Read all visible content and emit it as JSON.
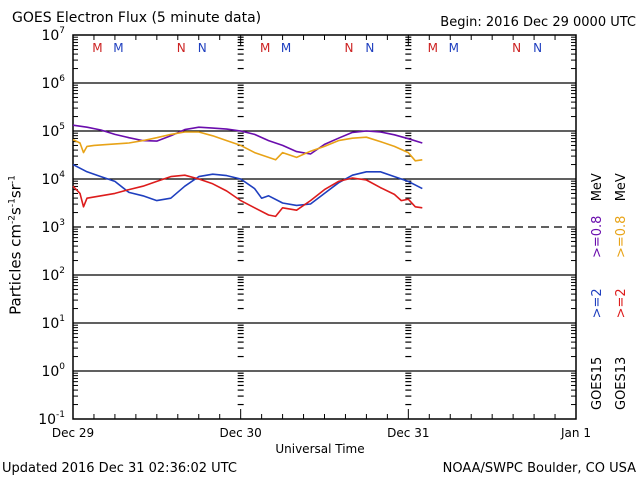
{
  "header": {
    "title": "GOES Electron Flux (5 minute data)",
    "begin": "Begin: 2016 Dec 29 0000 UTC"
  },
  "footer": {
    "updated": "Updated 2016 Dec 31 02:36:02 UTC",
    "credit": "NOAA/SWPC Boulder, CO USA"
  },
  "legend": {
    "goes15": {
      "label": "GOES15",
      "ge2": ">=2",
      "ge08": ">=0.8",
      "unit": "MeV"
    },
    "goes13": {
      "label": "GOES13",
      "ge2": ">=2",
      "ge08": ">=0.8",
      "unit": "MeV"
    }
  },
  "chart_data": {
    "type": "line",
    "title": "GOES Electron Flux (5 minute data)",
    "xlabel": "Universal Time",
    "ylabel": "Particles cm^-2 s^-1 sr^-1",
    "yscale": "log",
    "ylim_log10": [
      -1,
      7
    ],
    "xlim_hours": [
      0,
      72
    ],
    "grid": true,
    "legend_placement": "right (rotated)",
    "x_tick_labels": [
      {
        "hour": 0,
        "label": "Dec 29"
      },
      {
        "hour": 24,
        "label": "Dec 30"
      },
      {
        "hour": 48,
        "label": "Dec 31"
      },
      {
        "hour": 72,
        "label": "Jan 1"
      }
    ],
    "y_tick_labels": [
      {
        "exp": 7,
        "base": "10",
        "sup": "7"
      },
      {
        "exp": 6,
        "base": "10",
        "sup": "6"
      },
      {
        "exp": 5,
        "base": "10",
        "sup": "5"
      },
      {
        "exp": 4,
        "base": "10",
        "sup": "4"
      },
      {
        "exp": 3,
        "base": "10",
        "sup": "3"
      },
      {
        "exp": 2,
        "base": "10",
        "sup": "2"
      },
      {
        "exp": 1,
        "base": "10",
        "sup": "1"
      },
      {
        "exp": 0,
        "base": "10",
        "sup": "0"
      },
      {
        "exp": -1,
        "base": "10",
        "sup": "-1"
      }
    ],
    "dashed_threshold_log10": 3,
    "markers": [
      {
        "hour": 3.5,
        "letter": "M",
        "color": "#cc2222"
      },
      {
        "hour": 6.5,
        "letter": "M",
        "color": "#1f3fbf"
      },
      {
        "hour": 15.5,
        "letter": "N",
        "color": "#cc2222"
      },
      {
        "hour": 18.5,
        "letter": "N",
        "color": "#1f3fbf"
      },
      {
        "hour": 27.5,
        "letter": "M",
        "color": "#cc2222"
      },
      {
        "hour": 30.5,
        "letter": "M",
        "color": "#1f3fbf"
      },
      {
        "hour": 39.5,
        "letter": "N",
        "color": "#cc2222"
      },
      {
        "hour": 42.5,
        "letter": "N",
        "color": "#1f3fbf"
      },
      {
        "hour": 51.5,
        "letter": "M",
        "color": "#cc2222"
      },
      {
        "hour": 54.5,
        "letter": "M",
        "color": "#1f3fbf"
      },
      {
        "hour": 63.5,
        "letter": "N",
        "color": "#cc2222"
      },
      {
        "hour": 66.5,
        "letter": "N",
        "color": "#1f3fbf"
      }
    ],
    "series": [
      {
        "name": "GOES15 >=0.8 MeV",
        "color": "#6a0dad",
        "hours": [
          0,
          2,
          4,
          6,
          8,
          10,
          12,
          14,
          16,
          18,
          20,
          22,
          24,
          26,
          28,
          29,
          30,
          32,
          34,
          36,
          38,
          40,
          42,
          44,
          46,
          48,
          50
        ],
        "log10": [
          5.12,
          5.08,
          5.02,
          4.93,
          4.86,
          4.8,
          4.79,
          4.9,
          5.03,
          5.08,
          5.06,
          5.04,
          5.0,
          4.93,
          4.8,
          4.75,
          4.7,
          4.57,
          4.52,
          4.72,
          4.85,
          4.97,
          5.0,
          4.98,
          4.92,
          4.84,
          4.75
        ]
      },
      {
        "name": "GOES13 >=0.8 MeV",
        "color": "#e8a317",
        "hours": [
          0,
          1,
          1.5,
          2,
          3,
          5,
          8,
          10,
          12,
          14,
          16,
          18,
          20,
          22,
          24,
          26,
          28,
          29,
          30,
          32,
          34,
          36,
          38,
          40,
          42,
          44,
          46,
          48,
          49,
          50
        ],
        "log10": [
          4.82,
          4.75,
          4.55,
          4.68,
          4.7,
          4.72,
          4.75,
          4.8,
          4.86,
          4.93,
          4.98,
          4.98,
          4.9,
          4.8,
          4.7,
          4.55,
          4.45,
          4.4,
          4.55,
          4.45,
          4.58,
          4.68,
          4.8,
          4.85,
          4.87,
          4.78,
          4.68,
          4.55,
          4.38,
          4.4
        ]
      },
      {
        "name": "GOES15 >=2 MeV",
        "color": "#1f3fbf",
        "hours": [
          0,
          2,
          4,
          6,
          8,
          10,
          12,
          14,
          16,
          18,
          20,
          22,
          24,
          26,
          27,
          28,
          30,
          32,
          34,
          36,
          38,
          40,
          42,
          44,
          46,
          48,
          50
        ],
        "log10": [
          4.3,
          4.15,
          4.05,
          3.95,
          3.72,
          3.65,
          3.55,
          3.6,
          3.85,
          4.05,
          4.1,
          4.07,
          4.0,
          3.8,
          3.6,
          3.65,
          3.5,
          3.45,
          3.48,
          3.7,
          3.92,
          4.08,
          4.15,
          4.15,
          4.05,
          3.95,
          3.8
        ]
      },
      {
        "name": "GOES13 >=2 MeV",
        "color": "#dd1c1c",
        "hours": [
          0,
          1,
          1.5,
          2,
          4,
          6,
          8,
          10,
          12,
          14,
          16,
          18,
          20,
          22,
          24,
          26,
          28,
          29,
          30,
          32,
          34,
          36,
          38,
          40,
          42,
          44,
          46,
          47,
          48,
          49,
          50
        ],
        "log10": [
          3.85,
          3.7,
          3.42,
          3.6,
          3.65,
          3.7,
          3.78,
          3.85,
          3.95,
          4.05,
          4.08,
          4.0,
          3.9,
          3.75,
          3.55,
          3.4,
          3.25,
          3.22,
          3.4,
          3.35,
          3.55,
          3.78,
          3.95,
          4.02,
          3.98,
          3.82,
          3.68,
          3.55,
          3.58,
          3.42,
          3.4
        ]
      }
    ]
  }
}
